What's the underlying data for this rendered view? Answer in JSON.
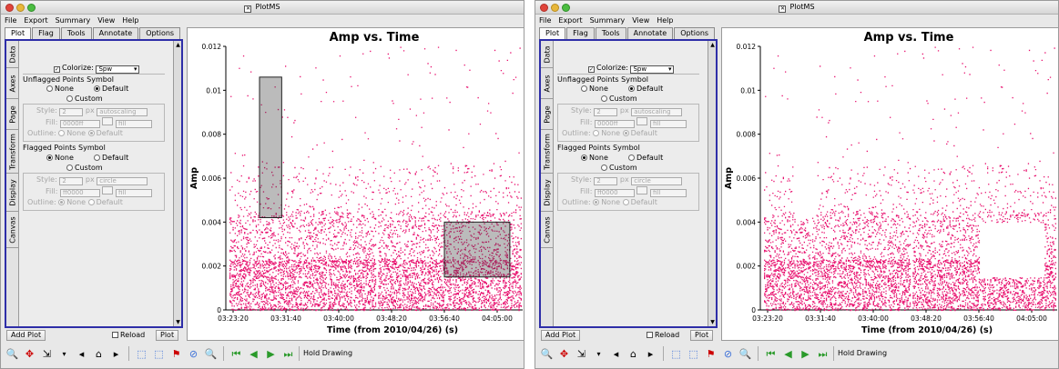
{
  "windows": [
    {
      "title": "PlotMS",
      "menu": [
        "File",
        "Export",
        "Summary",
        "View",
        "Help"
      ],
      "tabs": [
        "Plot",
        "Flag",
        "Tools",
        "Annotate",
        "Options"
      ],
      "side_tabs": [
        "Data",
        "Axes",
        "Page",
        "Transform",
        "Display",
        "Canvas"
      ],
      "colorize_label": "Colorize:",
      "colorize_value": "Spw",
      "unflagged_title": "Unflagged Points Symbol",
      "flagged_title": "Flagged Points Symbol",
      "none_label": "None",
      "default_label": "Default",
      "custom_label": "Custom",
      "style_label": "Style:",
      "px_label": "px",
      "fill_label": "Fill:",
      "outline_label": "Outline:",
      "unflagged_size": "2",
      "unflagged_shape": "autoscaling",
      "unflagged_fill_color": "0000ff",
      "unflagged_fill_mode": "fill",
      "flagged_size": "2",
      "flagged_shape": "circle",
      "flagged_fill_color": "ff0000",
      "flagged_fill_mode": "fill",
      "add_plot": "Add Plot",
      "reload": "Reload",
      "plot_button": "Plot",
      "hold_drawing": "Hold Drawing",
      "chart_data": {
        "type": "scatter",
        "title": "Amp vs. Time",
        "xlabel": "Time (from 2010/04/26) (s)",
        "ylabel": "Amp",
        "yticks": [
          "0",
          "0.002",
          "0.004",
          "0.006",
          "0.008",
          "0.01",
          "0.012"
        ],
        "xticks": [
          "03:23:20",
          "03:31:40",
          "03:40:00",
          "03:48:20",
          "03:56:40",
          "04:05:00"
        ],
        "ylim": [
          0,
          0.012
        ],
        "series_color": "#e8106e",
        "annotation_regions": [
          {
            "x_from": "03:27:30",
            "x_to": "03:31:00",
            "y_from": 0.0042,
            "y_to": 0.0106
          },
          {
            "x_from": "03:56:40",
            "x_to": "04:07:00",
            "y_from": 0.0015,
            "y_to": 0.004
          }
        ]
      }
    },
    {
      "title": "PlotMS",
      "menu": [
        "File",
        "Export",
        "Summary",
        "View",
        "Help"
      ],
      "tabs": [
        "Plot",
        "Flag",
        "Tools",
        "Annotate",
        "Options"
      ],
      "side_tabs": [
        "Data",
        "Axes",
        "Page",
        "Transform",
        "Display",
        "Canvas"
      ],
      "colorize_label": "Colorize:",
      "colorize_value": "Spw",
      "unflagged_title": "Unflagged Points Symbol",
      "flagged_title": "Flagged Points Symbol",
      "none_label": "None",
      "default_label": "Default",
      "custom_label": "Custom",
      "style_label": "Style:",
      "px_label": "px",
      "fill_label": "Fill:",
      "outline_label": "Outline:",
      "unflagged_size": "2",
      "unflagged_shape": "autoscaling",
      "unflagged_fill_color": "0000ff",
      "unflagged_fill_mode": "fill",
      "flagged_size": "2",
      "flagged_shape": "circle",
      "flagged_fill_color": "ff0000",
      "flagged_fill_mode": "fill",
      "add_plot": "Add Plot",
      "reload": "Reload",
      "plot_button": "Plot",
      "hold_drawing": "Hold Drawing",
      "chart_data": {
        "type": "scatter",
        "title": "Amp vs. Time",
        "xlabel": "Time (from 2010/04/26) (s)",
        "ylabel": "Amp",
        "yticks": [
          "0",
          "0.002",
          "0.004",
          "0.006",
          "0.008",
          "0.01",
          "0.012"
        ],
        "xticks": [
          "03:23:20",
          "03:31:40",
          "03:40:00",
          "03:48:20",
          "03:56:40",
          "04:05:00"
        ],
        "ylim": [
          0,
          0.012
        ],
        "series_color": "#e8106e",
        "flagged_regions_removed": [
          {
            "x_from": "03:27:30",
            "x_to": "03:31:00",
            "y_from": 0.0042,
            "y_to": 0.0106
          },
          {
            "x_from": "03:56:40",
            "x_to": "04:07:00",
            "y_from": 0.0015,
            "y_to": 0.004
          }
        ]
      }
    }
  ]
}
